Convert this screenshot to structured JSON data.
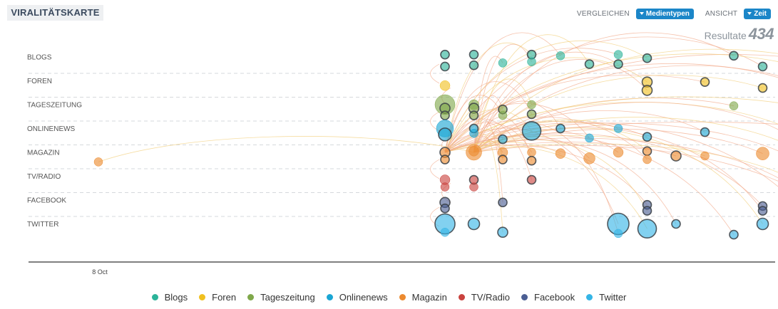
{
  "header": {
    "title": "VIRALITÄTSKARTE",
    "compare_label": "VERGLEICHEN",
    "compare_button": "Medientypen",
    "view_label": "ANSICHT",
    "view_button": "Zeit"
  },
  "results": {
    "label": "Resultate",
    "count": "434"
  },
  "colors": {
    "Blogs": "#2bb399",
    "Foren": "#f0c020",
    "Tageszeitung": "#7fa84a",
    "Onlinenews": "#1aa6d4",
    "Magazin": "#ec8a2f",
    "TV/Radio": "#c9423e",
    "Facebook": "#4b5e93",
    "Twitter": "#35b5e6"
  },
  "chart_data": {
    "type": "scatter",
    "title": "",
    "xlabel": "",
    "ylabel": "",
    "x_ticks": [
      "8 Oct"
    ],
    "categories": [
      "BLOGS",
      "FOREN",
      "TAGESZEITUNG",
      "ONLINENEWS",
      "MAGAZIN",
      "TV/RADIO",
      "FACEBOOK",
      "TWITTER"
    ],
    "legend": [
      "Blogs",
      "Foren",
      "Tageszeitung",
      "Onlinenews",
      "Magazin",
      "TV/Radio",
      "Facebook",
      "Twitter"
    ],
    "grid": true,
    "legend_placement": "bottom",
    "series": [
      {
        "name": "Blogs",
        "points": [
          {
            "col": 12,
            "lane": 0,
            "off": -0.1,
            "r": 6,
            "hl": true
          },
          {
            "col": 12,
            "lane": 0,
            "off": 0.4,
            "r": 6,
            "hl": true
          },
          {
            "col": 13,
            "lane": 0,
            "off": -0.1,
            "r": 6,
            "hl": true
          },
          {
            "col": 13,
            "lane": 0,
            "off": 0.35,
            "r": 6,
            "hl": true
          },
          {
            "col": 14,
            "lane": 0,
            "off": 0.25,
            "r": 6
          },
          {
            "col": 15,
            "lane": 0,
            "off": -0.1,
            "r": 6,
            "hl": true
          },
          {
            "col": 15,
            "lane": 0,
            "off": 0.2,
            "r": 6
          },
          {
            "col": 16,
            "lane": 0,
            "off": -0.05,
            "r": 6
          },
          {
            "col": 17,
            "lane": 0,
            "off": 0.3,
            "r": 6,
            "hl": true
          },
          {
            "col": 18,
            "lane": 0,
            "off": -0.1,
            "r": 6
          },
          {
            "col": 18,
            "lane": 0,
            "off": 0.3,
            "r": 6,
            "hl": true
          },
          {
            "col": 19,
            "lane": 0,
            "off": 0.05,
            "r": 6,
            "hl": true
          },
          {
            "col": 22,
            "lane": 0,
            "off": -0.05,
            "r": 6,
            "hl": true
          },
          {
            "col": 23,
            "lane": 0,
            "off": 0.4,
            "r": 6,
            "hl": true
          },
          {
            "col": 24,
            "lane": 0,
            "off": -0.05,
            "r": 6,
            "hl": true
          },
          {
            "col": 26,
            "lane": 0,
            "off": 0.4,
            "r": 6,
            "hl": true
          }
        ]
      },
      {
        "name": "Foren",
        "points": [
          {
            "col": 12,
            "lane": 1,
            "off": 0.2,
            "r": 7
          },
          {
            "col": 19,
            "lane": 1,
            "off": 0.05,
            "r": 7,
            "hl": true
          },
          {
            "col": 19,
            "lane": 1,
            "off": 0.4,
            "r": 7,
            "hl": true
          },
          {
            "col": 21,
            "lane": 1,
            "off": 0.05,
            "r": 6,
            "hl": true
          },
          {
            "col": 23,
            "lane": 1,
            "off": 0.3,
            "r": 6,
            "hl": true
          },
          {
            "col": 24,
            "lane": 1,
            "off": 0.05,
            "r": 7,
            "hl": true
          },
          {
            "col": 25,
            "lane": 1,
            "off": 0.4,
            "r": 6,
            "hl": true
          },
          {
            "col": 26,
            "lane": 1,
            "off": 0.15,
            "r": 7,
            "hl": true
          }
        ]
      },
      {
        "name": "Tageszeitung",
        "points": [
          {
            "col": 12,
            "lane": 2,
            "off": 0.0,
            "r": 14
          },
          {
            "col": 12,
            "lane": 2,
            "off": 0.15,
            "r": 7,
            "hl": true
          },
          {
            "col": 12,
            "lane": 2,
            "off": 0.45,
            "r": 6,
            "hl": true
          },
          {
            "col": 13,
            "lane": 2,
            "off": 0.0,
            "r": 7
          },
          {
            "col": 13,
            "lane": 2,
            "off": 0.15,
            "r": 7,
            "hl": true
          },
          {
            "col": 13,
            "lane": 2,
            "off": 0.45,
            "r": 6,
            "hl": true
          },
          {
            "col": 14,
            "lane": 2,
            "off": 0.2,
            "r": 6,
            "hl": true
          },
          {
            "col": 14,
            "lane": 2,
            "off": 0.45,
            "r": 6
          },
          {
            "col": 15,
            "lane": 2,
            "off": 0.0,
            "r": 6
          },
          {
            "col": 15,
            "lane": 2,
            "off": 0.4,
            "r": 6,
            "hl": true
          },
          {
            "col": 22,
            "lane": 2,
            "off": 0.05,
            "r": 6
          },
          {
            "col": 25,
            "lane": 2,
            "off": 0.25,
            "r": 6,
            "hl": true
          }
        ]
      },
      {
        "name": "Onlinenews",
        "points": [
          {
            "col": 12,
            "lane": 3,
            "off": 0.0,
            "r": 12
          },
          {
            "col": 12,
            "lane": 3,
            "off": 0.25,
            "r": 9,
            "hl": true
          },
          {
            "col": 13,
            "lane": 3,
            "off": 0.0,
            "r": 6,
            "hl": true
          },
          {
            "col": 13,
            "lane": 3,
            "off": 0.2,
            "r": 6
          },
          {
            "col": 14,
            "lane": 3,
            "off": 0.45,
            "r": 6,
            "hl": true
          },
          {
            "col": 15,
            "lane": 3,
            "off": 0.1,
            "r": 13,
            "hl": true
          },
          {
            "col": 16,
            "lane": 3,
            "off": 0.0,
            "r": 6,
            "hl": true
          },
          {
            "col": 17,
            "lane": 3,
            "off": 0.4,
            "r": 6
          },
          {
            "col": 18,
            "lane": 3,
            "off": 0.0,
            "r": 6
          },
          {
            "col": 19,
            "lane": 3,
            "off": 0.35,
            "r": 6,
            "hl": true
          },
          {
            "col": 21,
            "lane": 3,
            "off": 0.15,
            "r": 6,
            "hl": true
          },
          {
            "col": 24,
            "lane": 3,
            "off": 0.05,
            "r": 6,
            "hl": true
          },
          {
            "col": 24,
            "lane": 3,
            "off": 0.35,
            "r": 6,
            "hl": true
          },
          {
            "col": 26,
            "lane": 3,
            "off": 0.1,
            "r": 9,
            "hl": true
          }
        ]
      },
      {
        "name": "Magazin",
        "points": [
          {
            "col": 0,
            "lane": 4,
            "off": 0.4,
            "r": 6
          },
          {
            "col": 12,
            "lane": 4,
            "off": 0.0,
            "r": 7,
            "hl": true
          },
          {
            "col": 12,
            "lane": 4,
            "off": 0.3,
            "r": 6,
            "hl": true
          },
          {
            "col": 13,
            "lane": 4,
            "off": -0.05,
            "r": 7
          },
          {
            "col": 13,
            "lane": 4,
            "off": 0.0,
            "r": 11
          },
          {
            "col": 14,
            "lane": 4,
            "off": 0.0,
            "r": 7
          },
          {
            "col": 14,
            "lane": 4,
            "off": 0.3,
            "r": 6,
            "hl": true
          },
          {
            "col": 15,
            "lane": 4,
            "off": 0.0,
            "r": 6
          },
          {
            "col": 15,
            "lane": 4,
            "off": 0.35,
            "r": 6,
            "hl": true
          },
          {
            "col": 16,
            "lane": 4,
            "off": 0.05,
            "r": 7
          },
          {
            "col": 17,
            "lane": 4,
            "off": 0.25,
            "r": 8
          },
          {
            "col": 18,
            "lane": 4,
            "off": 0.0,
            "r": 7
          },
          {
            "col": 19,
            "lane": 4,
            "off": -0.05,
            "r": 6,
            "hl": true
          },
          {
            "col": 19,
            "lane": 4,
            "off": 0.3,
            "r": 6
          },
          {
            "col": 20,
            "lane": 4,
            "off": 0.15,
            "r": 7,
            "hl": true
          },
          {
            "col": 21,
            "lane": 4,
            "off": 0.15,
            "r": 6
          },
          {
            "col": 23,
            "lane": 4,
            "off": 0.05,
            "r": 9
          },
          {
            "col": 24,
            "lane": 4,
            "off": 0.2,
            "r": 6
          },
          {
            "col": 25,
            "lane": 4,
            "off": 0.4,
            "r": 6
          }
        ]
      },
      {
        "name": "TV/Radio",
        "points": [
          {
            "col": 12,
            "lane": 5,
            "off": 0.15,
            "r": 7
          },
          {
            "col": 12,
            "lane": 5,
            "off": 0.45,
            "r": 6
          },
          {
            "col": 13,
            "lane": 5,
            "off": 0.15,
            "r": 6,
            "hl": true
          },
          {
            "col": 13,
            "lane": 5,
            "off": 0.45,
            "r": 6
          },
          {
            "col": 15,
            "lane": 5,
            "off": 0.15,
            "r": 6,
            "hl": true
          },
          {
            "col": 24,
            "lane": 5,
            "off": 0.1,
            "r": 6,
            "hl": true
          },
          {
            "col": 24,
            "lane": 5,
            "off": 0.4,
            "r": 6
          }
        ]
      },
      {
        "name": "Facebook",
        "points": [
          {
            "col": 12,
            "lane": 6,
            "off": 0.1,
            "r": 7,
            "hl": true
          },
          {
            "col": 12,
            "lane": 6,
            "off": 0.35,
            "r": 6,
            "hl": true
          },
          {
            "col": 14,
            "lane": 6,
            "off": 0.1,
            "r": 6,
            "hl": true
          },
          {
            "col": 19,
            "lane": 6,
            "off": 0.2,
            "r": 6,
            "hl": true
          },
          {
            "col": 19,
            "lane": 6,
            "off": 0.45,
            "r": 6,
            "hl": true
          },
          {
            "col": 23,
            "lane": 6,
            "off": 0.25,
            "r": 6,
            "hl": true
          },
          {
            "col": 23,
            "lane": 6,
            "off": 0.45,
            "r": 6,
            "hl": true
          }
        ]
      },
      {
        "name": "Twitter",
        "points": [
          {
            "col": 12,
            "lane": 7,
            "off": 0.0,
            "r": 14,
            "hl": true
          },
          {
            "col": 12,
            "lane": 7,
            "off": 0.35,
            "r": 6
          },
          {
            "col": 13,
            "lane": 7,
            "off": 0.0,
            "r": 8,
            "hl": true
          },
          {
            "col": 14,
            "lane": 7,
            "off": 0.35,
            "r": 7,
            "hl": true
          },
          {
            "col": 18,
            "lane": 7,
            "off": 0.0,
            "r": 15,
            "hl": true
          },
          {
            "col": 18,
            "lane": 7,
            "off": 0.4,
            "r": 6
          },
          {
            "col": 19,
            "lane": 7,
            "off": 0.2,
            "r": 13,
            "hl": true
          },
          {
            "col": 20,
            "lane": 7,
            "off": 0.0,
            "r": 6,
            "hl": true
          },
          {
            "col": 22,
            "lane": 7,
            "off": 0.45,
            "r": 6,
            "hl": true
          },
          {
            "col": 23,
            "lane": 7,
            "off": 0.0,
            "r": 8,
            "hl": true
          },
          {
            "col": 25,
            "lane": 7,
            "off": 0.3,
            "r": 6,
            "hl": true
          },
          {
            "col": 26,
            "lane": 7,
            "off": 0.1,
            "r": 6,
            "hl": true
          }
        ]
      }
    ]
  }
}
